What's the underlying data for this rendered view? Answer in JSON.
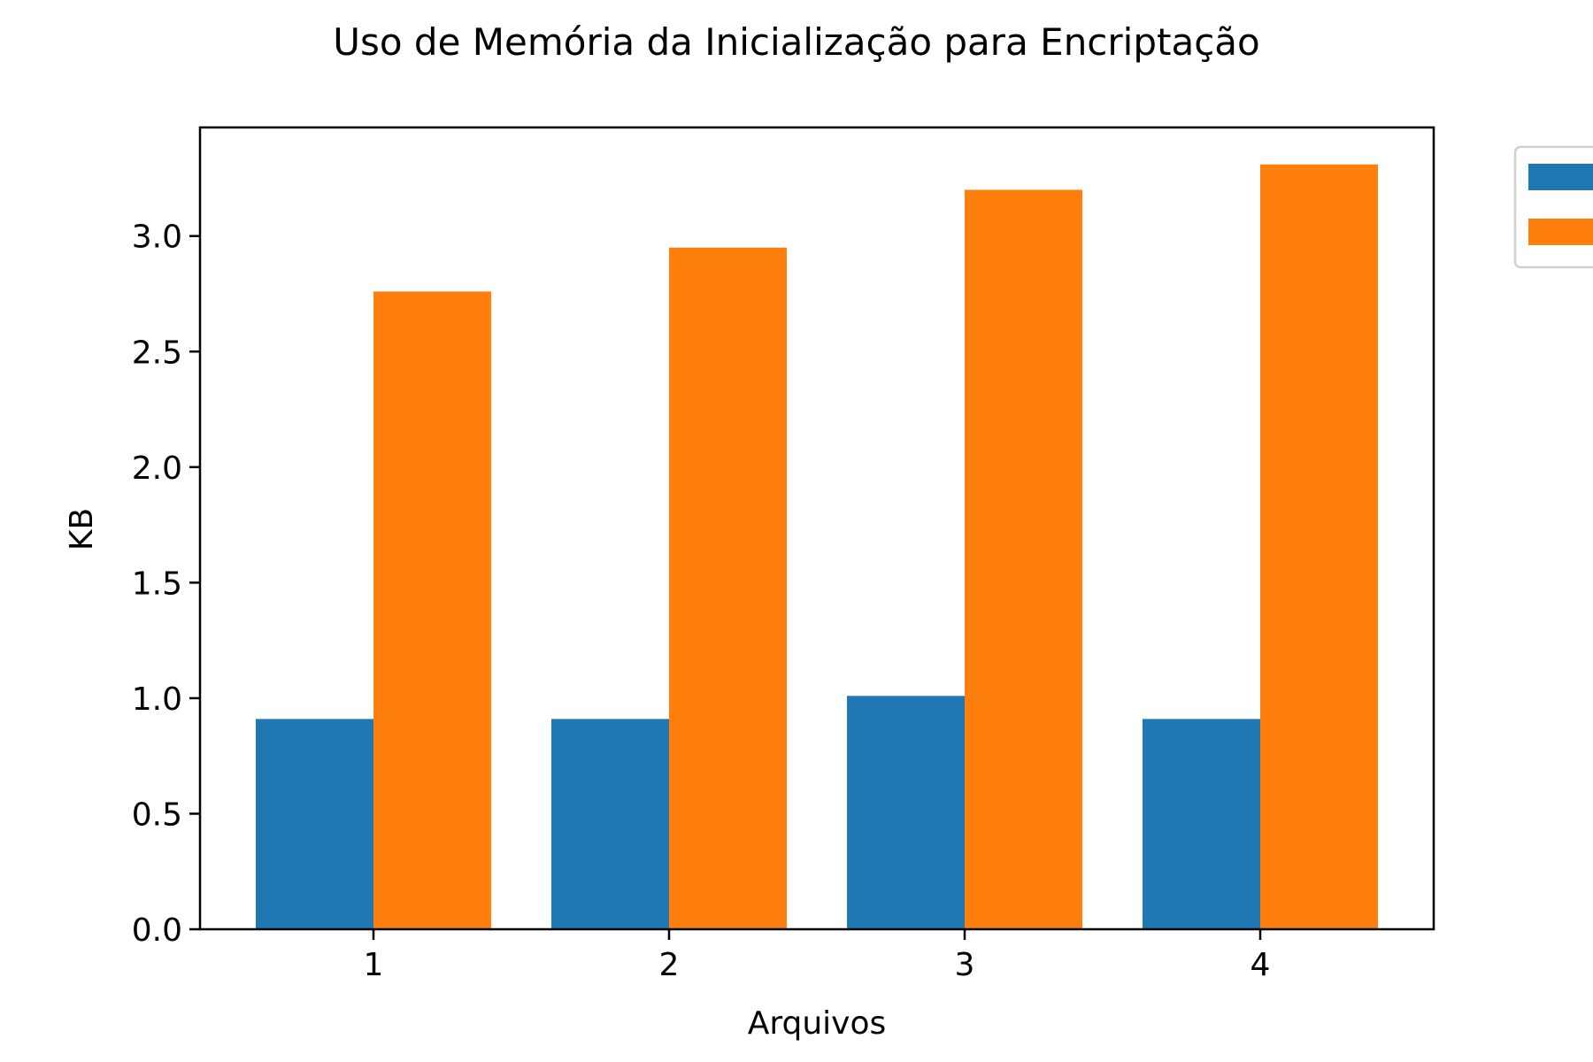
{
  "chart_data": {
    "type": "bar",
    "title": "Uso de Memória da Inicialização para Encriptação",
    "xlabel": "Arquivos",
    "ylabel": "KB",
    "categories": [
      "1",
      "2",
      "3",
      "4"
    ],
    "yticks": [
      "0.0",
      "0.5",
      "1.0",
      "1.5",
      "2.0",
      "2.5",
      "3.0"
    ],
    "ylim": [
      0,
      3.47
    ],
    "grid": false,
    "legend": "top-right, outside plot, partially cut off, labels not visible",
    "series": [
      {
        "color": "#1f77b4",
        "values": [
          0.91,
          0.91,
          1.01,
          0.91
        ]
      },
      {
        "color": "#ff7f0e",
        "values": [
          2.76,
          2.95,
          3.2,
          3.31
        ]
      }
    ]
  }
}
